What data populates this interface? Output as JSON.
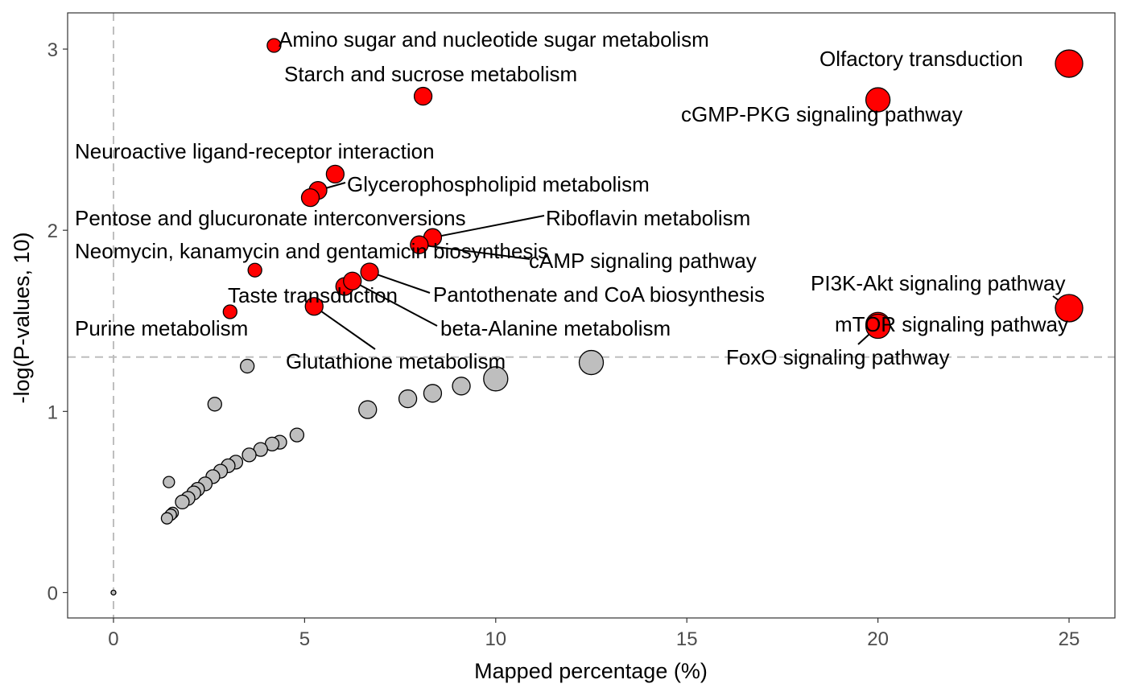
{
  "chart_data": {
    "type": "scatter",
    "xlabel": "Mapped percentage (%)",
    "ylabel": "-log(P-values, 10)",
    "xlim": [
      -1.2,
      26.2
    ],
    "ylim": [
      -0.14,
      3.2
    ],
    "x_ticks": [
      0,
      5,
      10,
      15,
      20,
      25
    ],
    "y_ticks": [
      0,
      1,
      2,
      3
    ],
    "grid": false,
    "threshold_lines": {
      "x": 0,
      "y": 1.3,
      "style": "dashed",
      "color": "#bebebe"
    },
    "colors": {
      "significant": "#ff0000",
      "not_significant": "#bebebe",
      "outline": "#000000"
    },
    "labeled_points": [
      {
        "label": "Amino sugar and nucleotide sugar metabolism",
        "x": 4.2,
        "y": 3.02,
        "size": 1
      },
      {
        "label": "Starch and sucrose metabolism",
        "x": 8.1,
        "y": 2.74,
        "size": 2
      },
      {
        "label": "Olfactory transduction",
        "x": 25.0,
        "y": 2.92,
        "size": 4
      },
      {
        "label": "cGMP-PKG signaling pathway",
        "x": 20.0,
        "y": 2.72,
        "size": 3
      },
      {
        "label": "Neuroactive ligand-receptor interaction",
        "x": 5.8,
        "y": 2.31,
        "size": 2
      },
      {
        "label": "Glycerophospholipid metabolism",
        "x": 5.35,
        "y": 2.22,
        "size": 2
      },
      {
        "label": "Pentose and glucuronate interconversions",
        "x": 5.15,
        "y": 2.18,
        "size": 2
      },
      {
        "label": "Riboflavin metabolism",
        "x": 8.35,
        "y": 1.96,
        "size": 2
      },
      {
        "label": "Neomycin, kanamycin and gentamicin biosynthesis",
        "x": 3.7,
        "y": 1.78,
        "size": 1
      },
      {
        "label": "cAMP signaling pathway",
        "x": 8.0,
        "y": 1.92,
        "size": 2
      },
      {
        "label": "PI3K-Akt signaling pathway",
        "x": 25.0,
        "y": 1.57,
        "size": 4
      },
      {
        "label": "Taste transduction",
        "x": 6.05,
        "y": 1.69,
        "size": 2
      },
      {
        "label": "Pantothenate and CoA biosynthesis",
        "x": 6.7,
        "y": 1.77,
        "size": 2
      },
      {
        "label": "mTOR signaling pathway",
        "x": 20.0,
        "y": 1.48,
        "size": 3
      },
      {
        "label": "beta-Alanine metabolism",
        "x": 6.25,
        "y": 1.72,
        "size": 2
      },
      {
        "label": "Purine metabolism",
        "x": 3.05,
        "y": 1.55,
        "size": 1
      },
      {
        "label": "FoxO signaling pathway",
        "x": 20.0,
        "y": 1.47,
        "size": 3
      },
      {
        "label": "Glutathione metabolism",
        "x": 5.25,
        "y": 1.58,
        "size": 2
      }
    ],
    "other_points": [
      {
        "x": 12.5,
        "y": 1.27,
        "size": 3
      },
      {
        "x": 10.0,
        "y": 1.18,
        "size": 3
      },
      {
        "x": 9.1,
        "y": 1.14,
        "size": 2
      },
      {
        "x": 8.35,
        "y": 1.1,
        "size": 2
      },
      {
        "x": 7.7,
        "y": 1.07,
        "size": 2
      },
      {
        "x": 6.65,
        "y": 1.01,
        "size": 2
      },
      {
        "x": 3.5,
        "y": 1.25,
        "size": 1
      },
      {
        "x": 2.65,
        "y": 1.04,
        "size": 1
      },
      {
        "x": 4.8,
        "y": 0.87,
        "size": 1
      },
      {
        "x": 4.35,
        "y": 0.83,
        "size": 1
      },
      {
        "x": 4.15,
        "y": 0.82,
        "size": 1
      },
      {
        "x": 3.85,
        "y": 0.79,
        "size": 1
      },
      {
        "x": 3.55,
        "y": 0.76,
        "size": 1
      },
      {
        "x": 3.2,
        "y": 0.72,
        "size": 1
      },
      {
        "x": 3.0,
        "y": 0.7,
        "size": 1
      },
      {
        "x": 2.8,
        "y": 0.67,
        "size": 1
      },
      {
        "x": 2.6,
        "y": 0.64,
        "size": 1
      },
      {
        "x": 2.4,
        "y": 0.6,
        "size": 1
      },
      {
        "x": 2.2,
        "y": 0.57,
        "size": 1
      },
      {
        "x": 2.1,
        "y": 0.55,
        "size": 1
      },
      {
        "x": 1.95,
        "y": 0.52,
        "size": 1
      },
      {
        "x": 1.8,
        "y": 0.5,
        "size": 1
      },
      {
        "x": 1.45,
        "y": 0.61,
        "size": 0
      },
      {
        "x": 1.55,
        "y": 0.44,
        "size": 0
      },
      {
        "x": 1.5,
        "y": 0.43,
        "size": 0
      },
      {
        "x": 1.4,
        "y": 0.41,
        "size": 0
      },
      {
        "x": 0.0,
        "y": 0.0,
        "size": -1
      }
    ]
  }
}
